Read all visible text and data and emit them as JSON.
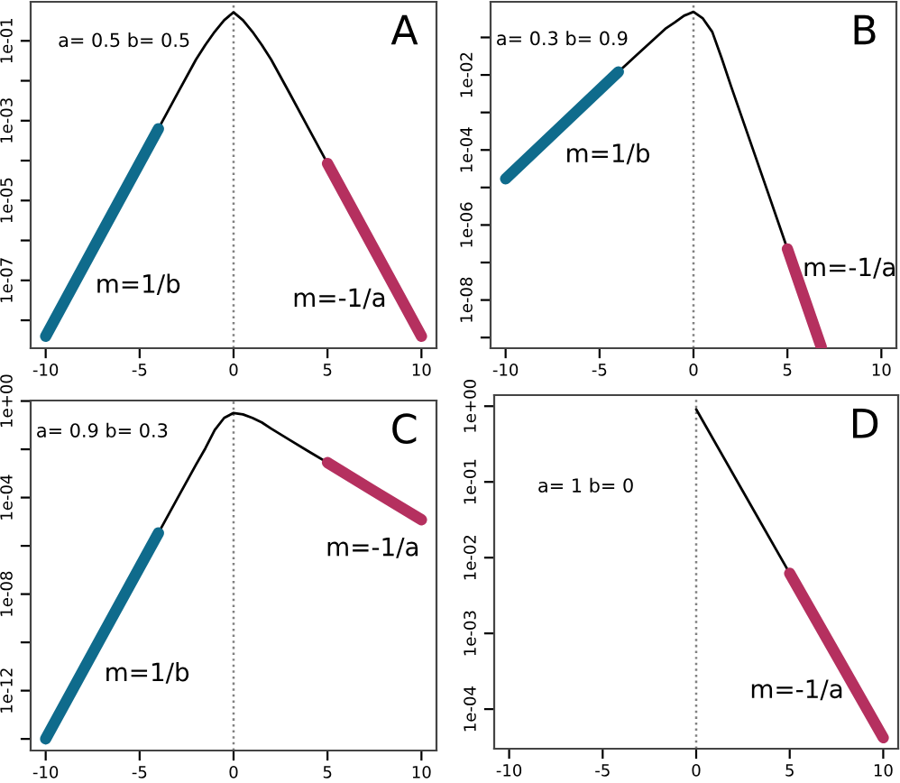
{
  "chart_data": [
    {
      "type": "line",
      "title": "A",
      "subtitle": "a= 0.5 b= 0.5",
      "log": true,
      "series": [
        {
          "color": "#000000",
          "x": [
            -4,
            -3,
            -2,
            -1.5,
            -1,
            -0.5,
            0,
            0.5,
            1,
            1.5,
            2,
            3,
            4,
            5
          ],
          "values": [
            0.00063,
            0.0047,
            0.034,
            0.079,
            0.17,
            0.33,
            0.52,
            0.33,
            0.17,
            0.079,
            0.034,
            0.0047,
            0.00063,
            8.5e-05
          ]
        },
        {
          "color": "#0f6b8c",
          "x": [
            -10,
            -7,
            -4
          ],
          "values": [
            4e-09,
            1.6e-06,
            0.00063
          ]
        },
        {
          "color": "#b5305f",
          "x": [
            5,
            7.5,
            10
          ],
          "values": [
            8.5e-05,
            5.8e-07,
            4e-09
          ]
        }
      ],
      "xlim": [
        -10.8,
        10.8
      ],
      "xticks": [
        -10,
        -5,
        0,
        5,
        10
      ],
      "ylim": [
        2e-09,
        0.95
      ],
      "yticks": [
        {
          "value": 0.1,
          "label": "1e-01"
        },
        {
          "value": 0.01,
          "label": null
        },
        {
          "value": 0.001,
          "label": "1e-03"
        },
        {
          "value": 0.0001,
          "label": null
        },
        {
          "value": 1e-05,
          "label": "1e-05"
        },
        {
          "value": 1e-06,
          "label": null
        },
        {
          "value": 1e-07,
          "label": "1e-07"
        },
        {
          "value": 1e-08,
          "label": null
        }
      ],
      "ref_lines": [
        {
          "axis": "x",
          "value": 0,
          "color": "#808080",
          "line_style": "dotted"
        }
      ],
      "annotations": [
        "m=1/b",
        "m=-1/a"
      ]
    },
    {
      "type": "line",
      "title": "B",
      "subtitle": "a= 0.3 b= 0.9",
      "log": true,
      "series": [
        {
          "color": "#000000",
          "x": [
            -4,
            -3,
            -2,
            -1.5,
            -1,
            -0.5,
            0,
            0.5,
            1,
            1.5,
            2,
            3,
            4,
            5
          ],
          "values": [
            0.012,
            0.035,
            0.1,
            0.17,
            0.25,
            0.38,
            0.48,
            0.32,
            0.14,
            0.028,
            0.005,
            0.00018,
            6.5e-06,
            2.3e-07
          ]
        },
        {
          "color": "#0f6b8c",
          "x": [
            -10,
            -7,
            -4
          ],
          "values": [
            1.7e-05,
            0.00045,
            0.012
          ]
        },
        {
          "color": "#b5305f",
          "x": [
            5,
            6,
            6.8
          ],
          "values": [
            2.3e-07,
            8.1e-09,
            5.6e-10
          ]
        }
      ],
      "xlim": [
        -10.8,
        10.8
      ],
      "xticks": [
        -10,
        -5,
        0,
        5,
        10
      ],
      "ylim": [
        5.2e-10,
        0.89
      ],
      "yticks": [
        {
          "value": 0.1,
          "label": null
        },
        {
          "value": 0.01,
          "label": "1e-02"
        },
        {
          "value": 0.001,
          "label": null
        },
        {
          "value": 0.0001,
          "label": "1e-04"
        },
        {
          "value": 1e-05,
          "label": null
        },
        {
          "value": 1e-06,
          "label": "1e-06"
        },
        {
          "value": 1e-07,
          "label": null
        },
        {
          "value": 1e-08,
          "label": "1e-08"
        },
        {
          "value": 1e-09,
          "label": null
        }
      ],
      "ref_lines": [
        {
          "axis": "x",
          "value": 0,
          "color": "#808080",
          "line_style": "dotted"
        }
      ],
      "annotations": [
        "m=1/b",
        "m=-1/a"
      ]
    },
    {
      "type": "line",
      "title": "C",
      "subtitle": "a= 0.9 b= 0.3",
      "log": true,
      "series": [
        {
          "color": "#000000",
          "x": [
            -4,
            -3,
            -2,
            -1.5,
            -1,
            -0.5,
            0,
            0.5,
            1,
            1.5,
            2,
            3,
            4,
            5
          ],
          "values": [
            3.4e-06,
            8.9e-05,
            0.0023,
            0.011,
            0.063,
            0.2,
            0.32,
            0.28,
            0.2,
            0.13,
            0.072,
            0.024,
            0.0081,
            0.0028
          ]
        },
        {
          "color": "#0f6b8c",
          "x": [
            -10,
            -7,
            -4
          ],
          "values": [
            1e-14,
            1.9e-10,
            3.4e-06
          ]
        },
        {
          "color": "#b5305f",
          "x": [
            5,
            7.5,
            10
          ],
          "values": [
            0.0028,
            0.00018,
            1.2e-05
          ]
        }
      ],
      "xlim": [
        -10.8,
        10.8
      ],
      "xticks": [
        -10,
        -5,
        0,
        5,
        10
      ],
      "ylim": [
        3.3e-15,
        1.05
      ],
      "yticks": [
        {
          "value": 1,
          "label": "1e+00"
        },
        {
          "value": 0.01,
          "label": null
        },
        {
          "value": 0.0001,
          "label": "1e-04"
        },
        {
          "value": 1e-06,
          "label": null
        },
        {
          "value": 1e-08,
          "label": "1e-08"
        },
        {
          "value": 1e-10,
          "label": null
        },
        {
          "value": 1e-12,
          "label": "1e-12"
        },
        {
          "value": 1e-14,
          "label": null
        }
      ],
      "ref_lines": [
        {
          "axis": "x",
          "value": 0,
          "color": "#808080",
          "line_style": "dotted"
        }
      ],
      "annotations": [
        "m=1/b",
        "m=-1/a"
      ]
    },
    {
      "type": "line",
      "title": "D",
      "subtitle": "a= 1 b= 0",
      "log": true,
      "series": [
        {
          "color": "#000000",
          "x": [
            0,
            2.5,
            5
          ],
          "values": [
            0.91,
            0.075,
            0.0062
          ]
        },
        {
          "color": "#b5305f",
          "x": [
            5,
            7.5,
            10
          ],
          "values": [
            0.0062,
            0.00051,
            4.2e-05
          ]
        }
      ],
      "xlim": [
        -10.8,
        10.8
      ],
      "xticks": [
        -10,
        -5,
        0,
        5,
        10
      ],
      "ylim": [
        3e-05,
        1.4
      ],
      "yticks": [
        {
          "value": 1,
          "label": "1e+00"
        },
        {
          "value": 0.1,
          "label": "1e-01"
        },
        {
          "value": 0.01,
          "label": "1e-02"
        },
        {
          "value": 0.001,
          "label": "1e-03"
        },
        {
          "value": 0.0001,
          "label": "1e-04"
        }
      ],
      "ref_lines": [
        {
          "axis": "x",
          "value": 0,
          "color": "#808080",
          "line_style": "dotted"
        }
      ],
      "annotations": [
        "m=-1/a"
      ]
    }
  ]
}
